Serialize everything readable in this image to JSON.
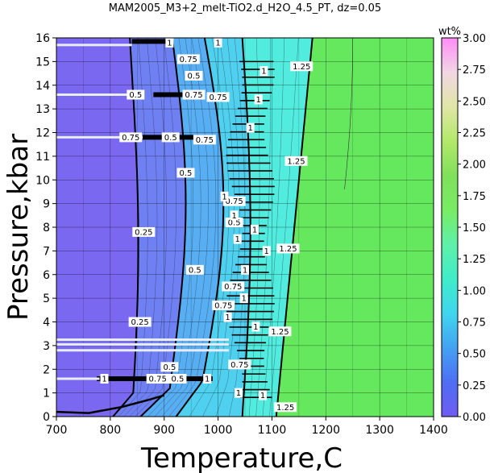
{
  "chart_data": {
    "type": "heatmap",
    "title": "MAM2005_M3+2_melt-TiO2.d_H2O_4.5_PT, dz=0.05",
    "xlabel": "Temperature,C",
    "ylabel": "Pressure,kbar",
    "xlim": [
      700,
      1400
    ],
    "ylim": [
      0,
      16
    ],
    "x_ticks": [
      700,
      800,
      900,
      1000,
      1100,
      1200,
      1300,
      1400
    ],
    "y_ticks": [
      0,
      1,
      2,
      3,
      4,
      5,
      6,
      7,
      8,
      9,
      10,
      11,
      12,
      13,
      14,
      15,
      16
    ],
    "grid": true,
    "colorbar": {
      "label": "wt%",
      "range": [
        0.0,
        3.0
      ],
      "ticks": [
        "0.00",
        "0.25",
        "0.50",
        "0.75",
        "1.00",
        "1.25",
        "1.50",
        "1.75",
        "2.00",
        "2.25",
        "2.50",
        "2.75",
        "3.00"
      ],
      "colors": [
        "#6f5cf2",
        "#4e6ef3",
        "#44a2f2",
        "#3fd6ee",
        "#40ecc9",
        "#5ff0a8",
        "#78ec64",
        "#7fe05b",
        "#b3e86a",
        "#e0e6a6",
        "#f2d6e4",
        "#ff8cf7"
      ]
    },
    "fill_regions": [
      {
        "range": "<0.25",
        "color": "#7b68f0"
      },
      {
        "range": "0.25-0.5",
        "color": "#6f80f2"
      },
      {
        "range": "0.5-0.75",
        "color": "#57aef2"
      },
      {
        "range": "0.75-1",
        "color": "#4fd0ee"
      },
      {
        "range": "1-1.25",
        "color": "#52ecdf"
      },
      {
        "range": ">1.25",
        "color": "#66e85e"
      }
    ],
    "contours": [
      {
        "level": 0.25,
        "points": [
          [
            830,
            16
          ],
          [
            832,
            12
          ],
          [
            845,
            9
          ],
          [
            858,
            6
          ],
          [
            855,
            3
          ],
          [
            840,
            1
          ],
          [
            790,
            0.3
          ]
        ]
      },
      {
        "level": 0.5,
        "points": [
          [
            905,
            16
          ],
          [
            900,
            12
          ],
          [
            935,
            9
          ],
          [
            940,
            6
          ],
          [
            935,
            3
          ],
          [
            920,
            1.2
          ],
          [
            870,
            0.5
          ]
        ]
      },
      {
        "level": 0.75,
        "points": [
          [
            960,
            16
          ],
          [
            965,
            13
          ],
          [
            1000,
            10
          ],
          [
            1010,
            7
          ],
          [
            1010,
            4
          ],
          [
            1000,
            2
          ],
          [
            970,
            0.8
          ]
        ]
      },
      {
        "level": 1.0,
        "points": [
          [
            1030,
            16
          ],
          [
            1040,
            12
          ],
          [
            1055,
            9
          ],
          [
            1060,
            6
          ],
          [
            1055,
            3
          ],
          [
            1060,
            1.5
          ],
          [
            1080,
            0.5
          ]
        ]
      },
      {
        "level": 1.25,
        "points": [
          [
            1175,
            16
          ],
          [
            1165,
            12
          ],
          [
            1150,
            8
          ],
          [
            1130,
            4
          ],
          [
            1115,
            1
          ],
          [
            1110,
            0
          ]
        ]
      }
    ],
    "contour_labels": [
      "1",
      "1",
      "0.75",
      "0.5",
      "1",
      "0.5",
      "0.75",
      "0.75",
      "1",
      "0.75",
      "0.5",
      "0.75",
      "1",
      "0.5",
      "0.75",
      "0.25",
      "0.5",
      "1",
      "1",
      "1",
      "1",
      "1",
      "1",
      "0.75",
      "0.75",
      "1",
      "1",
      "1",
      "0.75",
      "0.5",
      "0.75",
      "1",
      "0.5",
      "1",
      "1.25",
      "1.25",
      "1.25",
      "1.25",
      "0.25",
      "0.5",
      "1",
      "1",
      "1.25"
    ]
  }
}
